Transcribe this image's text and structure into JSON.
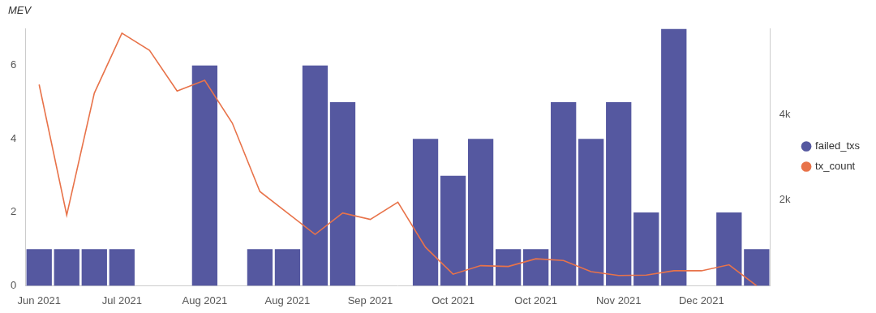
{
  "chart_data": {
    "type": "bar",
    "title": "MEV",
    "categories": [
      "Jun 2021",
      null,
      null,
      "Jul 2021",
      null,
      null,
      "Aug 2021",
      null,
      null,
      "Aug 2021",
      null,
      null,
      "Sep 2021",
      null,
      null,
      "Oct 2021",
      null,
      null,
      "Oct 2021",
      null,
      null,
      "Nov 2021",
      null,
      null,
      "Dec 2021",
      null,
      null
    ],
    "series": [
      {
        "name": "failed_txs",
        "type": "bar",
        "color": "#5558a0",
        "axis": "y",
        "values": [
          1,
          1,
          1,
          1,
          0,
          0,
          6,
          0,
          1,
          1,
          6,
          5,
          0,
          0,
          4,
          3,
          4,
          1,
          1,
          5,
          4,
          5,
          2,
          7,
          0,
          2,
          1
        ]
      },
      {
        "name": "tx_count",
        "type": "line",
        "color": "#e8734a",
        "axis": "y2",
        "values": [
          4700,
          1650,
          4500,
          5900,
          5500,
          4550,
          4800,
          3800,
          2200,
          1700,
          1200,
          1700,
          1550,
          1950,
          900,
          270,
          470,
          450,
          630,
          590,
          330,
          240,
          250,
          350,
          350,
          490,
          0
        ]
      }
    ],
    "ylim": [
      0,
      7
    ],
    "yticks": [
      0,
      2,
      4,
      6
    ],
    "y2lim": [
      0,
      6000
    ],
    "y2ticks": [
      {
        "value": 2000,
        "label": "2k"
      },
      {
        "value": 4000,
        "label": "4k"
      }
    ],
    "grid": false,
    "legend": "right"
  }
}
